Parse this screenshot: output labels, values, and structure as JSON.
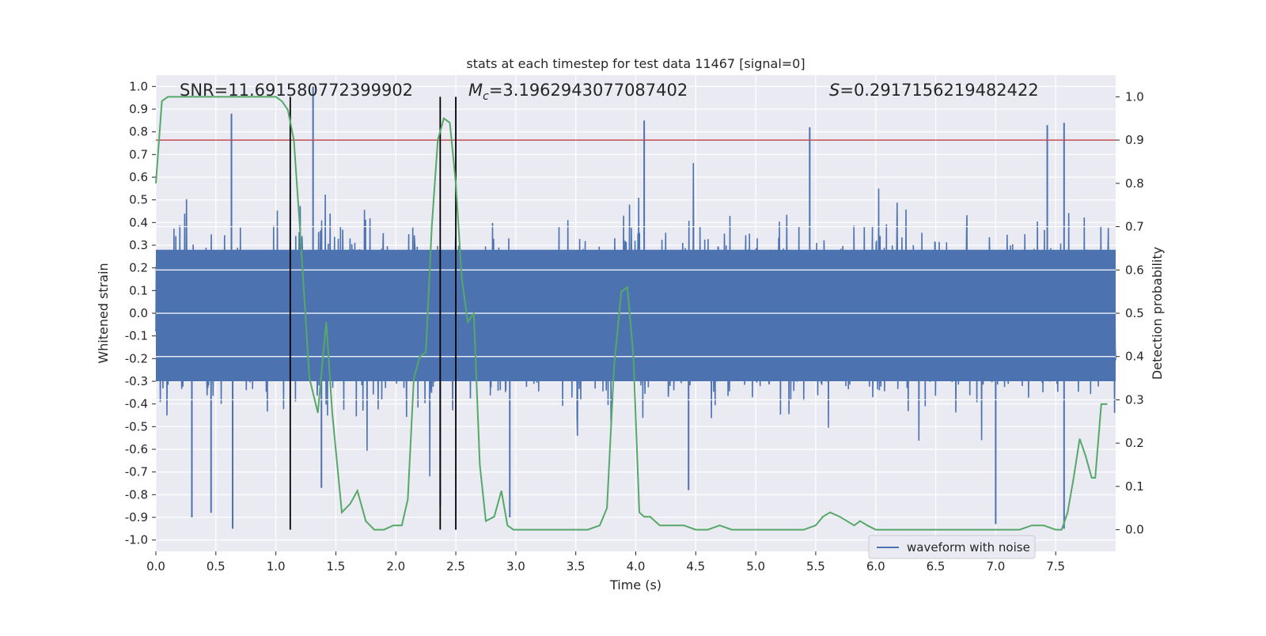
{
  "chart_data": {
    "type": "line",
    "title": "stats at each timestep for test data 11467 [signal=0]",
    "xlabel": "Time (s)",
    "ylabel_left": "Whitened strain",
    "ylabel_right": "Detection probability",
    "xlim": [
      0,
      8
    ],
    "ylim_left": [
      -1.05,
      1.05
    ],
    "ylim_right": [
      -0.05,
      1.05
    ],
    "x_ticks": [
      "0.0",
      "0.5",
      "1.0",
      "1.5",
      "2.0",
      "2.5",
      "3.0",
      "3.5",
      "4.0",
      "4.5",
      "5.0",
      "5.5",
      "6.0",
      "6.5",
      "7.0",
      "7.5"
    ],
    "y_ticks_left": [
      "-1.0",
      "-0.9",
      "-0.8",
      "-0.7",
      "-0.6",
      "-0.5",
      "-0.4",
      "-0.3",
      "-0.2",
      "-0.1",
      "0.0",
      "0.1",
      "0.2",
      "0.3",
      "0.4",
      "0.5",
      "0.6",
      "0.7",
      "0.8",
      "0.9",
      "1.0"
    ],
    "y_ticks_right": [
      "0.0",
      "0.1",
      "0.2",
      "0.3",
      "0.4",
      "0.5",
      "0.6",
      "0.7",
      "0.8",
      "0.9",
      "1.0"
    ],
    "annotations": {
      "snr": "SNR=11.691580772399902",
      "mc_symbol": "M",
      "mc_sub": "c",
      "mc_value": "=3.1962943077087402",
      "s_symbol": "S",
      "s_value": "=0.2917156219482422"
    },
    "threshold": {
      "axis": "right",
      "value": 0.9,
      "color": "#c44e52"
    },
    "vertical_markers": [
      1.12,
      2.37,
      2.5
    ],
    "legend": {
      "entries": [
        "waveform with noise"
      ],
      "placement": "lower-right"
    },
    "colors": {
      "strain": "#4c72b0",
      "probability": "#55a868",
      "background": "#eaeaf2",
      "grid": "#ffffff",
      "marker": "#000000"
    },
    "grid": true,
    "series": [
      {
        "name": "waveform with noise",
        "axis": "left",
        "style": "dense noise, typical envelope about ±0.5",
        "peaks": [
          {
            "x": 0.63,
            "y": 0.88
          },
          {
            "x": 0.64,
            "y": -0.95
          },
          {
            "x": 1.31,
            "y": 1.0
          },
          {
            "x": 1.38,
            "y": -0.77
          },
          {
            "x": 2.37,
            "y": -0.85
          },
          {
            "x": 4.07,
            "y": 0.85
          },
          {
            "x": 4.44,
            "y": -0.78
          },
          {
            "x": 5.45,
            "y": 0.82
          },
          {
            "x": 7.0,
            "y": -0.93
          },
          {
            "x": 7.43,
            "y": 0.83
          },
          {
            "x": 7.57,
            "y": 0.84
          },
          {
            "x": 7.57,
            "y": -0.95
          },
          {
            "x": 0.3,
            "y": -0.9
          },
          {
            "x": 0.46,
            "y": -0.88
          },
          {
            "x": 2.95,
            "y": -0.9
          }
        ]
      },
      {
        "name": "",
        "axis": "right",
        "x": [
          0,
          0.05,
          0.1,
          0.2,
          0.4,
          0.6,
          0.8,
          1.0,
          1.05,
          1.1,
          1.15,
          1.2,
          1.28,
          1.35,
          1.42,
          1.47,
          1.55,
          1.62,
          1.68,
          1.75,
          1.82,
          1.9,
          1.98,
          2.05,
          2.1,
          2.15,
          2.2,
          2.25,
          2.3,
          2.35,
          2.4,
          2.45,
          2.5,
          2.55,
          2.6,
          2.65,
          2.7,
          2.75,
          2.82,
          2.88,
          2.93,
          2.98,
          3.05,
          3.2,
          3.4,
          3.6,
          3.7,
          3.76,
          3.82,
          3.88,
          3.93,
          3.98,
          4.03,
          4.07,
          4.12,
          4.2,
          4.3,
          4.4,
          4.5,
          4.6,
          4.7,
          4.8,
          5.0,
          5.2,
          5.4,
          5.5,
          5.56,
          5.62,
          5.7,
          5.82,
          5.87,
          5.93,
          6.0,
          6.2,
          6.5,
          6.8,
          7.0,
          7.2,
          7.3,
          7.4,
          7.5,
          7.55,
          7.6,
          7.65,
          7.7,
          7.75,
          7.8,
          7.83,
          7.88,
          7.93
        ],
        "y": [
          0.8,
          0.99,
          1.0,
          1.0,
          1.0,
          1.0,
          1.0,
          1.0,
          0.99,
          0.97,
          0.9,
          0.7,
          0.35,
          0.27,
          0.48,
          0.27,
          0.04,
          0.06,
          0.09,
          0.02,
          0.0,
          0.0,
          0.01,
          0.01,
          0.07,
          0.35,
          0.4,
          0.41,
          0.7,
          0.9,
          0.95,
          0.94,
          0.8,
          0.58,
          0.48,
          0.5,
          0.15,
          0.02,
          0.03,
          0.09,
          0.01,
          0.0,
          0.0,
          0.0,
          0.0,
          0.0,
          0.01,
          0.05,
          0.38,
          0.55,
          0.56,
          0.4,
          0.04,
          0.03,
          0.03,
          0.01,
          0.01,
          0.01,
          0.0,
          0.0,
          0.01,
          0.0,
          0.0,
          0.0,
          0.0,
          0.01,
          0.03,
          0.04,
          0.03,
          0.01,
          0.02,
          0.01,
          0.0,
          0.0,
          0.0,
          0.0,
          0.0,
          0.0,
          0.01,
          0.01,
          0.0,
          0.0,
          0.04,
          0.12,
          0.21,
          0.17,
          0.12,
          0.12,
          0.29,
          0.29
        ]
      }
    ]
  }
}
